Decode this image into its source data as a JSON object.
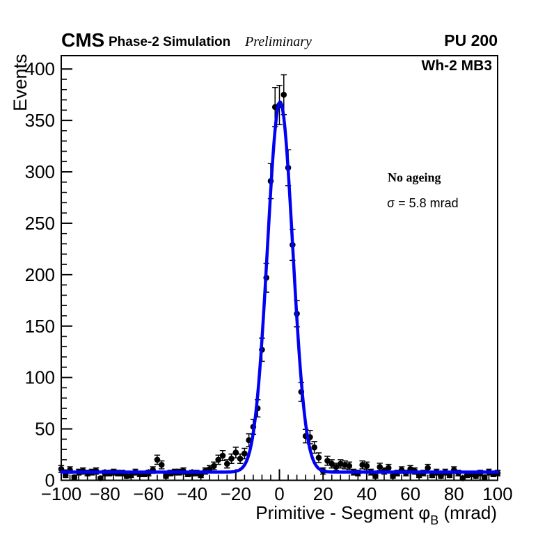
{
  "header": {
    "experiment_label": "CMS",
    "simulation_label": "Phase-2 Simulation",
    "status_label": "Preliminary",
    "pileup_label": "PU 200"
  },
  "plot": {
    "chamber_label": "Wh-2 MB3",
    "ageing_label": "No ageing",
    "sigma_label": "σ = 5.8 mrad"
  },
  "chart_data": {
    "type": "scatter",
    "subtype": "histogram_points_with_poisson_errors_plus_gaussian_fit",
    "title": "",
    "xlabel": "Primitive - Segment φ_B (mrad)",
    "xlabel_parts": {
      "prefix": "Primitive - Segment ",
      "symbol": "φ",
      "subscript": "B",
      "suffix": " (mrad)"
    },
    "ylabel": "Events",
    "xlim": [
      -100,
      100
    ],
    "ylim": [
      0,
      413
    ],
    "x_major_ticks": [
      -100,
      -80,
      -60,
      -40,
      -20,
      0,
      20,
      40,
      60,
      80,
      100
    ],
    "x_minor_step": 4,
    "y_major_ticks": [
      0,
      50,
      100,
      150,
      200,
      250,
      300,
      350,
      400
    ],
    "y_minor_step": 10,
    "grid": false,
    "legend": "none",
    "bin_width_mrad": 2,
    "marker_color": "#000000",
    "fit": {
      "model": "gaussian+constant",
      "amplitude": 360,
      "mean": 0.3,
      "sigma_mrad": 5.8,
      "constant": 8,
      "color": "#0202f2"
    },
    "x": [
      -100,
      -98,
      -96,
      -94,
      -92,
      -90,
      -88,
      -86,
      -84,
      -82,
      -80,
      -78,
      -76,
      -74,
      -72,
      -70,
      -68,
      -66,
      -64,
      -62,
      -60,
      -58,
      -56,
      -54,
      -52,
      -50,
      -48,
      -46,
      -44,
      -42,
      -40,
      -38,
      -36,
      -34,
      -32,
      -30,
      -28,
      -26,
      -24,
      -22,
      -20,
      -18,
      -16,
      -14,
      -12,
      -10,
      -8,
      -6,
      -4,
      -2,
      0,
      2,
      4,
      6,
      8,
      10,
      12,
      14,
      16,
      18,
      20,
      22,
      24,
      26,
      28,
      30,
      32,
      34,
      36,
      38,
      40,
      42,
      44,
      46,
      48,
      50,
      52,
      54,
      56,
      58,
      60,
      62,
      64,
      66,
      68,
      70,
      72,
      74,
      76,
      78,
      80,
      82,
      84,
      86,
      88,
      90,
      92,
      94,
      96,
      98,
      100
    ],
    "y": [
      11,
      5,
      10,
      3,
      8,
      9,
      7,
      8,
      9,
      2,
      7,
      7,
      8,
      7,
      7,
      4,
      5,
      8,
      6,
      6,
      7,
      10,
      20,
      15,
      4,
      7,
      8,
      8,
      9,
      6,
      7,
      7,
      5,
      9,
      11,
      14,
      20,
      24,
      16,
      21,
      27,
      21,
      26,
      39,
      52,
      70,
      127,
      197,
      291,
      363,
      365,
      375,
      304,
      229,
      162,
      86,
      43,
      42,
      32,
      22,
      9,
      19,
      16,
      13,
      16,
      15,
      14,
      8,
      7,
      15,
      14,
      8,
      4,
      13,
      9,
      12,
      4,
      7,
      10,
      7,
      11,
      9,
      5,
      7,
      12,
      5,
      8,
      4,
      8,
      5,
      10,
      7,
      2,
      5,
      6,
      4,
      7,
      3,
      8,
      6,
      7
    ],
    "y_errors": "sqrt(y)"
  }
}
